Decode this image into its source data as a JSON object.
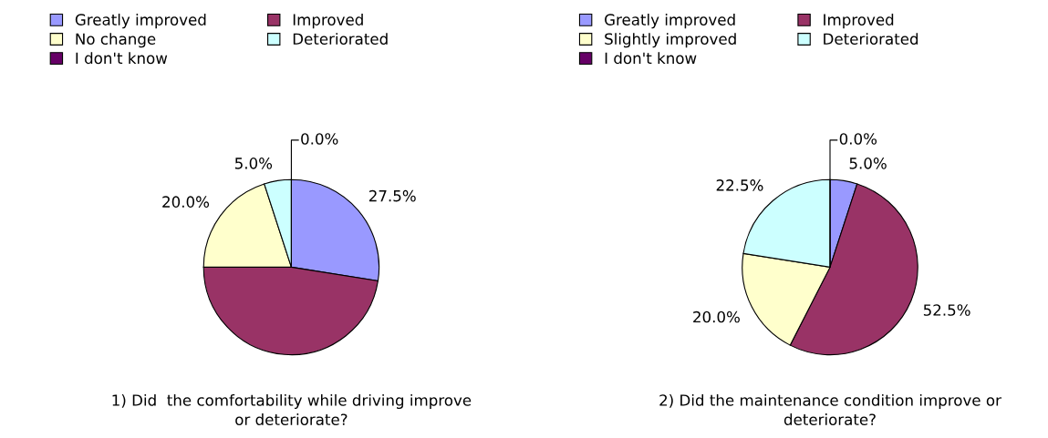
{
  "chart_data": [
    {
      "type": "pie",
      "categories": [
        "Greatly improved",
        "Improved",
        "No change",
        "Deteriorated",
        "I don't know"
      ],
      "values": [
        27.5,
        47.5,
        20.0,
        5.0,
        0.0
      ],
      "value_labels": [
        "27.5%",
        null,
        "20.0%",
        "5.0%",
        "0.0%"
      ],
      "colors": [
        "#9999ff",
        "#993366",
        "#ffffcc",
        "#ccffff",
        "#660066"
      ],
      "legend": "top",
      "annotations": [
        "1) Did  the comfortability while driving improve or deteriorate?"
      ]
    },
    {
      "type": "pie",
      "categories": [
        "Greatly improved",
        "Improved",
        "Slightly improved",
        "Deteriorated",
        "I don't know"
      ],
      "values": [
        5.0,
        52.5,
        20.0,
        22.5,
        0.0
      ],
      "value_labels": [
        "5.0%",
        "52.5%",
        "20.0%",
        "22.5%",
        "0.0%"
      ],
      "colors": [
        "#9999ff",
        "#993366",
        "#ffffcc",
        "#ccffff",
        "#660066"
      ],
      "legend": "top",
      "annotations": [
        "2) Did the maintenance condition improve or deteriorate?"
      ]
    }
  ]
}
